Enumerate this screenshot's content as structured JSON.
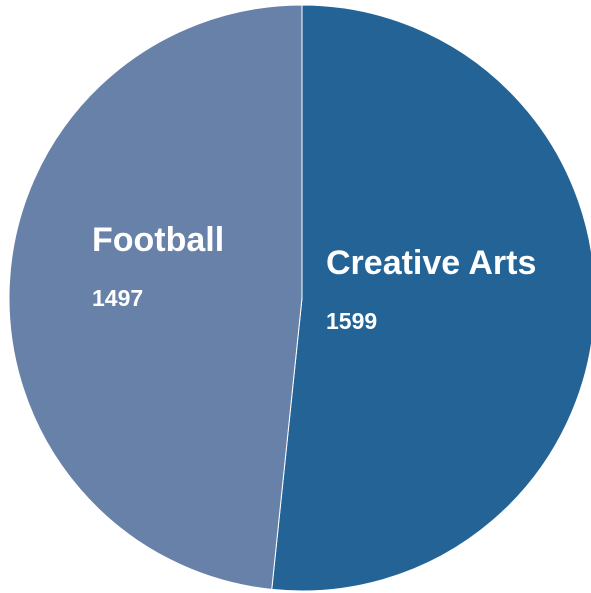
{
  "chart_data": {
    "type": "pie",
    "title": "",
    "categories": [
      "Creative Arts",
      "Football"
    ],
    "values": [
      1599,
      1497
    ],
    "colors": [
      "#236396",
      "#6881a8"
    ],
    "legend": "none"
  }
}
